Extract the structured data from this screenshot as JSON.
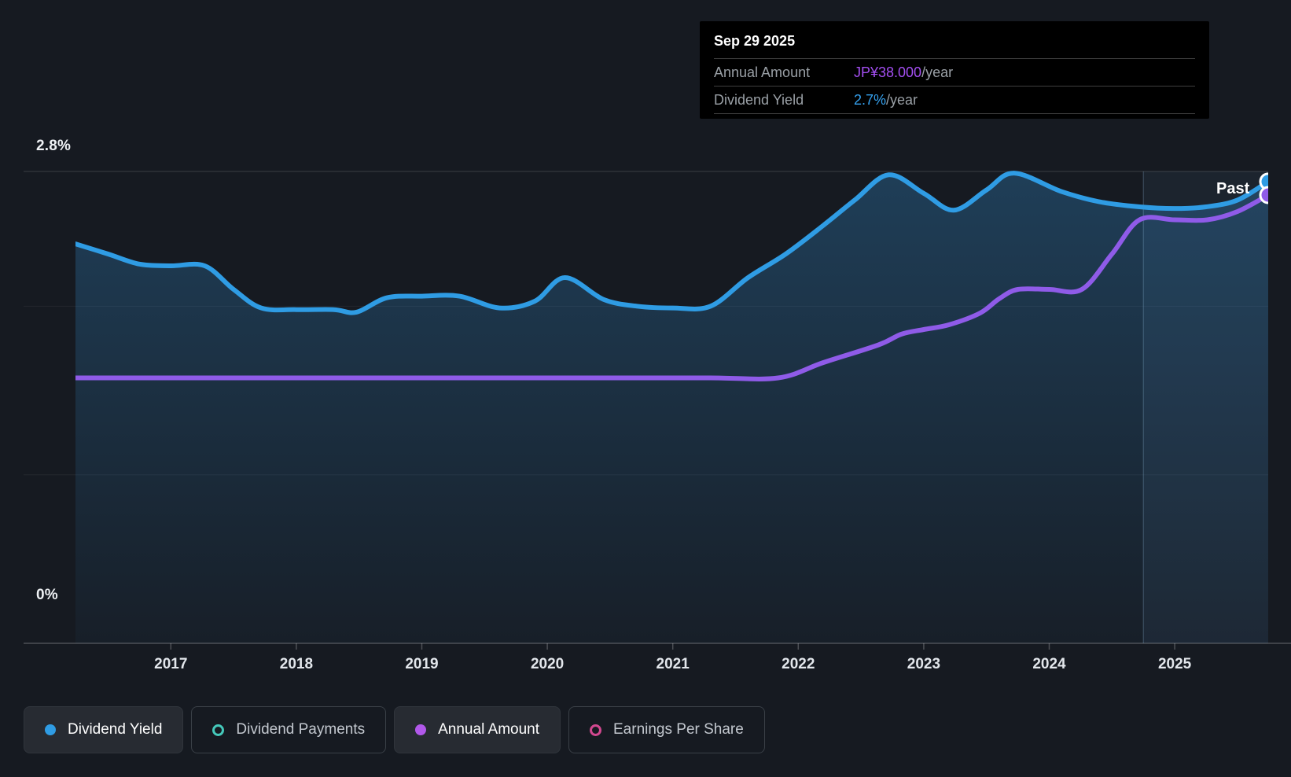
{
  "tooltip": {
    "date": "Sep 29 2025",
    "rows": [
      {
        "label": "Annual Amount",
        "value": "JP¥38.000",
        "suffix": "/year",
        "color": "#a44ff2"
      },
      {
        "label": "Dividend Yield",
        "value": "2.7%",
        "suffix": "/year",
        "color": "#35a1ef"
      }
    ]
  },
  "past_label": "Past",
  "y_axis": {
    "top_label": "2.8%",
    "bottom_label": "0%"
  },
  "legend": {
    "items": [
      {
        "label": "Dividend Yield",
        "marker": "filled",
        "color": "#2f9ce4",
        "active": true
      },
      {
        "label": "Dividend Payments",
        "marker": "ring",
        "color": "#45c8ba",
        "active": false
      },
      {
        "label": "Annual Amount",
        "marker": "filled",
        "color": "#b158ea",
        "active": true
      },
      {
        "label": "Earnings Per Share",
        "marker": "ring",
        "color": "#d1488f",
        "active": false
      }
    ]
  },
  "colors": {
    "background": "#161a21",
    "grid_major": "rgba(255,255,255,0.16)",
    "grid_minor": "rgba(255,255,255,0.06)",
    "axis_bottom": "rgba(255,255,255,0.24)",
    "divider": "rgba(160,205,240,0.30)",
    "past_region_fill": "rgba(110,175,225,0.07)",
    "area_fill": "#3493d8"
  },
  "chart_data": {
    "type": "area",
    "title": "Dividend yield and annual dividend amount history, Mar 2016 - Sep 29 2025",
    "x_range": [
      2016.24,
      2025.745
    ],
    "x_ticks": [
      2017,
      2018,
      2019,
      2020,
      2021,
      2022,
      2023,
      2024,
      2025
    ],
    "gridline_values_pct": [
      2.8,
      2.0,
      1.0,
      0
    ],
    "yield_axis": {
      "min": 0,
      "top": 2.8,
      "unit": "%"
    },
    "amount_axis": {
      "min": 0,
      "top": 40,
      "unit": "JP¥/year",
      "anchor": "JP¥38.000 at Sep 29 2025"
    },
    "divider_year": 2024.75,
    "legend_position": "bottom",
    "series": [
      {
        "name": "Dividend Yield",
        "unit": "%",
        "color": "#2f9ce4",
        "area": true,
        "axis_max": 2.8,
        "points": [
          [
            2016.24,
            2.37
          ],
          [
            2016.5,
            2.31
          ],
          [
            2016.75,
            2.25
          ],
          [
            2017.0,
            2.24
          ],
          [
            2017.27,
            2.24
          ],
          [
            2017.5,
            2.1
          ],
          [
            2017.72,
            1.99
          ],
          [
            2018.0,
            1.98
          ],
          [
            2018.3,
            1.98
          ],
          [
            2018.48,
            1.965
          ],
          [
            2018.72,
            2.05
          ],
          [
            2019.0,
            2.06
          ],
          [
            2019.3,
            2.06
          ],
          [
            2019.62,
            1.99
          ],
          [
            2019.9,
            2.03
          ],
          [
            2020.14,
            2.17
          ],
          [
            2020.45,
            2.04
          ],
          [
            2020.72,
            2.0
          ],
          [
            2021.0,
            1.99
          ],
          [
            2021.3,
            2.0
          ],
          [
            2021.6,
            2.17
          ],
          [
            2021.9,
            2.31
          ],
          [
            2022.2,
            2.48
          ],
          [
            2022.45,
            2.63
          ],
          [
            2022.72,
            2.78
          ],
          [
            2023.0,
            2.67
          ],
          [
            2023.24,
            2.57
          ],
          [
            2023.5,
            2.69
          ],
          [
            2023.72,
            2.79
          ],
          [
            2024.1,
            2.68
          ],
          [
            2024.4,
            2.62
          ],
          [
            2024.72,
            2.59
          ],
          [
            2025.0,
            2.58
          ],
          [
            2025.25,
            2.59
          ],
          [
            2025.5,
            2.63
          ],
          [
            2025.745,
            2.74
          ]
        ]
      },
      {
        "name": "Annual Amount",
        "unit": "JP¥/year",
        "color": "#8f5be8",
        "area": false,
        "axis_max": 40,
        "points": [
          [
            2016.24,
            22.5
          ],
          [
            2017.5,
            22.5
          ],
          [
            2018.5,
            22.5
          ],
          [
            2019.5,
            22.5
          ],
          [
            2020.5,
            22.5
          ],
          [
            2021.3,
            22.5
          ],
          [
            2021.84,
            22.5
          ],
          [
            2022.2,
            23.8
          ],
          [
            2022.64,
            25.3
          ],
          [
            2022.82,
            26.2
          ],
          [
            2023.0,
            26.6
          ],
          [
            2023.2,
            27.0
          ],
          [
            2023.45,
            28.0
          ],
          [
            2023.6,
            29.2
          ],
          [
            2023.75,
            30.0
          ],
          [
            2024.0,
            30.0
          ],
          [
            2024.26,
            30.0
          ],
          [
            2024.5,
            33.0
          ],
          [
            2024.72,
            35.9
          ],
          [
            2025.0,
            35.9
          ],
          [
            2025.26,
            35.9
          ],
          [
            2025.5,
            36.6
          ],
          [
            2025.745,
            38.0
          ]
        ]
      }
    ],
    "end_markers": [
      {
        "series": "Dividend Yield",
        "year": 2025.745,
        "value": 2.74
      },
      {
        "series": "Annual Amount",
        "year": 2025.745,
        "value": 38.0
      }
    ]
  }
}
